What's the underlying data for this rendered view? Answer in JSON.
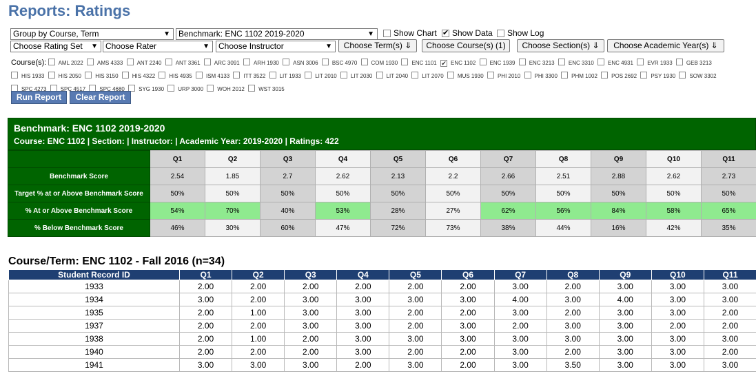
{
  "page_title": "Reports: Ratings",
  "controls": {
    "group_by": "Group by Course, Term",
    "benchmark": "Benchmark: ENC 1102 2019-2020",
    "show_chart": {
      "label": "Show Chart",
      "checked": false
    },
    "show_data": {
      "label": "Show Data",
      "checked": true
    },
    "show_log": {
      "label": "Show Log",
      "checked": false
    },
    "rating_set": "Choose Rating Set",
    "rater": "Choose Rater",
    "instructor": "Choose Instructor",
    "terms_button": "Choose Term(s) ⇓",
    "courses_button": "Choose Course(s) (1)",
    "sections_button": "Choose Section(s) ⇓",
    "years_button": "Choose Academic Year(s) ⇓",
    "courses_label": "Course(s):",
    "courses": [
      {
        "code": "AML 2022",
        "checked": false
      },
      {
        "code": "AMS 4333",
        "checked": false
      },
      {
        "code": "ANT 2240",
        "checked": false
      },
      {
        "code": "ANT 3361",
        "checked": false
      },
      {
        "code": "ARC 3091",
        "checked": false
      },
      {
        "code": "ARH 1930",
        "checked": false
      },
      {
        "code": "ASN 3006",
        "checked": false
      },
      {
        "code": "BSC 4970",
        "checked": false
      },
      {
        "code": "COM 1930",
        "checked": false
      },
      {
        "code": "ENC 1101",
        "checked": false
      },
      {
        "code": "ENC 1102",
        "checked": true
      },
      {
        "code": "ENC 1939",
        "checked": false
      },
      {
        "code": "ENC 3213",
        "checked": false
      },
      {
        "code": "ENC 3310",
        "checked": false
      },
      {
        "code": "ENC 4931",
        "checked": false
      },
      {
        "code": "EVR 1933",
        "checked": false
      },
      {
        "code": "GEB 3213",
        "checked": false
      },
      {
        "code": "HIS 1933",
        "checked": false
      },
      {
        "code": "HIS 2050",
        "checked": false
      },
      {
        "code": "HIS 3150",
        "checked": false
      },
      {
        "code": "HIS 4322",
        "checked": false
      },
      {
        "code": "HIS 4935",
        "checked": false
      },
      {
        "code": "ISM 4133",
        "checked": false
      },
      {
        "code": "ITT 3522",
        "checked": false
      },
      {
        "code": "LIT 1933",
        "checked": false
      },
      {
        "code": "LIT 2010",
        "checked": false
      },
      {
        "code": "LIT 2030",
        "checked": false
      },
      {
        "code": "LIT 2040",
        "checked": false
      },
      {
        "code": "LIT 2070",
        "checked": false
      },
      {
        "code": "MUS 1930",
        "checked": false
      },
      {
        "code": "PHI 2010",
        "checked": false
      },
      {
        "code": "PHI 3300",
        "checked": false
      },
      {
        "code": "PHM 1002",
        "checked": false
      },
      {
        "code": "POS 2692",
        "checked": false
      },
      {
        "code": "PSY 1930",
        "checked": false
      },
      {
        "code": "SOW 3302",
        "checked": false
      },
      {
        "code": "SPC 4273",
        "checked": false
      },
      {
        "code": "SPC 4517",
        "checked": false
      },
      {
        "code": "SPC 4680",
        "checked": false
      },
      {
        "code": "SYG 1930",
        "checked": false
      },
      {
        "code": "URP 3000",
        "checked": false
      },
      {
        "code": "WOH 2012",
        "checked": false
      },
      {
        "code": "WST 3015",
        "checked": false
      }
    ],
    "run_button": "Run Report",
    "clear_button": "Clear Report"
  },
  "benchmark": {
    "title": "Benchmark: ENC 1102 2019-2020",
    "subtitle": "Course: ENC 1102 | Section: | Instructor: | Academic Year: 2019-2020 | Ratings: 422",
    "questions": [
      "Q1",
      "Q2",
      "Q3",
      "Q4",
      "Q5",
      "Q6",
      "Q7",
      "Q8",
      "Q9",
      "Q10",
      "Q11"
    ],
    "rows": [
      {
        "label": "Benchmark Score",
        "values": [
          "2.54",
          "1.85",
          "2.7",
          "2.62",
          "2.13",
          "2.2",
          "2.66",
          "2.51",
          "2.88",
          "2.62",
          "2.73"
        ]
      },
      {
        "label": "Target % at or Above Benchmark Score",
        "values": [
          "50%",
          "50%",
          "50%",
          "50%",
          "50%",
          "50%",
          "50%",
          "50%",
          "50%",
          "50%",
          "50%"
        ]
      },
      {
        "label": "% At or Above Benchmark Score",
        "values": [
          "54%",
          "70%",
          "40%",
          "53%",
          "28%",
          "27%",
          "62%",
          "56%",
          "84%",
          "58%",
          "65%"
        ]
      },
      {
        "label": "% Below Benchmark Score",
        "values": [
          "46%",
          "30%",
          "60%",
          "47%",
          "72%",
          "73%",
          "38%",
          "44%",
          "16%",
          "42%",
          "35%"
        ]
      }
    ],
    "met_target": [
      true,
      true,
      false,
      true,
      false,
      false,
      true,
      true,
      true,
      true,
      true
    ],
    "met_color": "#8fea8f",
    "header_color": "#006400"
  },
  "course_term": {
    "title": "Course/Term: ENC 1102 - Fall 2016 (n=34)",
    "columns": [
      "Student Record ID",
      "Q1",
      "Q2",
      "Q3",
      "Q4",
      "Q5",
      "Q6",
      "Q7",
      "Q8",
      "Q9",
      "Q10",
      "Q11"
    ],
    "rows": [
      [
        "1933",
        "2.00",
        "2.00",
        "2.00",
        "2.00",
        "2.00",
        "2.00",
        "3.00",
        "2.00",
        "3.00",
        "3.00",
        "3.00"
      ],
      [
        "1934",
        "3.00",
        "2.00",
        "3.00",
        "3.00",
        "3.00",
        "3.00",
        "4.00",
        "3.00",
        "4.00",
        "3.00",
        "3.00"
      ],
      [
        "1935",
        "2.00",
        "1.00",
        "3.00",
        "3.00",
        "2.00",
        "2.00",
        "3.00",
        "2.00",
        "3.00",
        "3.00",
        "2.00"
      ],
      [
        "1937",
        "2.00",
        "2.00",
        "3.00",
        "3.00",
        "2.00",
        "3.00",
        "2.00",
        "3.00",
        "3.00",
        "2.00",
        "2.00"
      ],
      [
        "1938",
        "2.00",
        "1.00",
        "2.00",
        "3.00",
        "3.00",
        "3.00",
        "3.00",
        "3.00",
        "3.00",
        "3.00",
        "3.00"
      ],
      [
        "1940",
        "2.00",
        "2.00",
        "2.00",
        "3.00",
        "2.00",
        "2.00",
        "3.00",
        "2.00",
        "3.00",
        "3.00",
        "2.00"
      ],
      [
        "1941",
        "3.00",
        "3.00",
        "3.00",
        "2.00",
        "3.00",
        "2.00",
        "3.00",
        "3.50",
        "3.00",
        "3.00",
        "3.00"
      ]
    ],
    "header_color": "#1f3f72"
  }
}
